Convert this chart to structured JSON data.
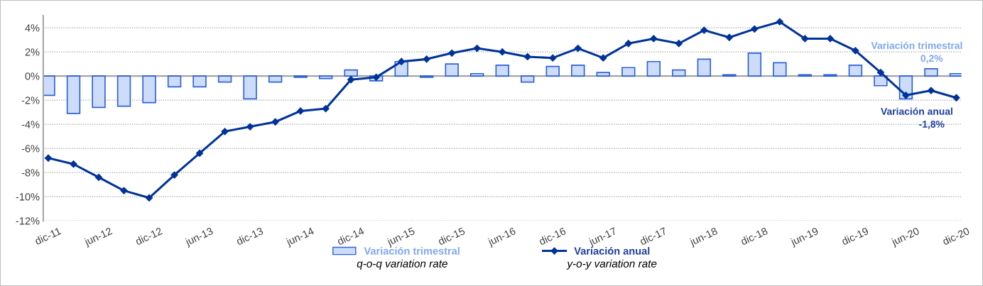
{
  "chart_data": {
    "type": "bar",
    "categories": [
      "dic-11",
      null,
      "jun-12",
      null,
      "dic-12",
      null,
      "jun-13",
      null,
      "dic-13",
      null,
      "jun-14",
      null,
      "dic-14",
      null,
      "jun-15",
      null,
      "dic-15",
      null,
      "jun-16",
      null,
      "dic-16",
      null,
      "jun-17",
      null,
      "dic-17",
      null,
      "jun-18",
      null,
      "dic-18",
      null,
      "jun-19",
      null,
      "dic-19",
      null,
      "jun-20",
      null,
      "dic-20"
    ],
    "series": [
      {
        "name": "Variación trimestral",
        "color": "#cddcfb",
        "values": [
          -1.6,
          -3.1,
          -2.6,
          -2.5,
          -2.2,
          -0.9,
          -0.9,
          -0.5,
          -1.9,
          -0.5,
          -0.1,
          -0.2,
          0.5,
          -0.4,
          1.2,
          -0.1,
          1.0,
          0.2,
          0.9,
          -0.5,
          0.8,
          0.9,
          0.3,
          0.7,
          1.2,
          0.5,
          1.4,
          0.1,
          1.9,
          1.1,
          0.1,
          0.1,
          0.9,
          -0.8,
          -1.9,
          0.6,
          0.2
        ]
      },
      {
        "name": "Variación anual",
        "type": "line",
        "color": "#003399",
        "marker": "diamond",
        "line_style": "solid",
        "values": [
          -6.8,
          -7.3,
          -8.4,
          -9.5,
          -10.1,
          -8.2,
          -6.4,
          -4.6,
          -4.2,
          -3.8,
          -2.9,
          -2.7,
          -0.3,
          -0.1,
          1.2,
          1.4,
          1.9,
          2.3,
          2.0,
          1.6,
          1.5,
          2.3,
          1.5,
          2.7,
          3.1,
          2.7,
          3.8,
          3.2,
          3.9,
          4.5,
          3.1,
          3.1,
          2.1,
          0.3,
          -1.6,
          -1.2,
          -1.8
        ]
      }
    ],
    "ylim": [
      -12,
      5
    ],
    "yticks": [
      {
        "value": -12,
        "label": "-12%"
      },
      {
        "value": -10,
        "label": "-10%"
      },
      {
        "value": -8,
        "label": "-8%"
      },
      {
        "value": -6,
        "label": "-6%"
      },
      {
        "value": -4,
        "label": "-4%"
      },
      {
        "value": -2,
        "label": "-2%"
      },
      {
        "value": 0,
        "label": "0%"
      },
      {
        "value": 2,
        "label": "2%"
      },
      {
        "value": 4,
        "label": "4%"
      }
    ],
    "grid": "y",
    "legend": "bottom",
    "annotations": [
      {
        "text": "Variación trimestral",
        "x": "dic-20",
        "y": 0.2
      },
      {
        "text": "0,2%",
        "x": "dic-20",
        "y": 0.2
      },
      {
        "text": "Variación anual",
        "x": "dic-20",
        "y": -1.8
      },
      {
        "text": "-1,8%",
        "x": "dic-20",
        "y": -1.8
      },
      "q-o-q variation rate",
      "y-o-y variation rate"
    ]
  }
}
